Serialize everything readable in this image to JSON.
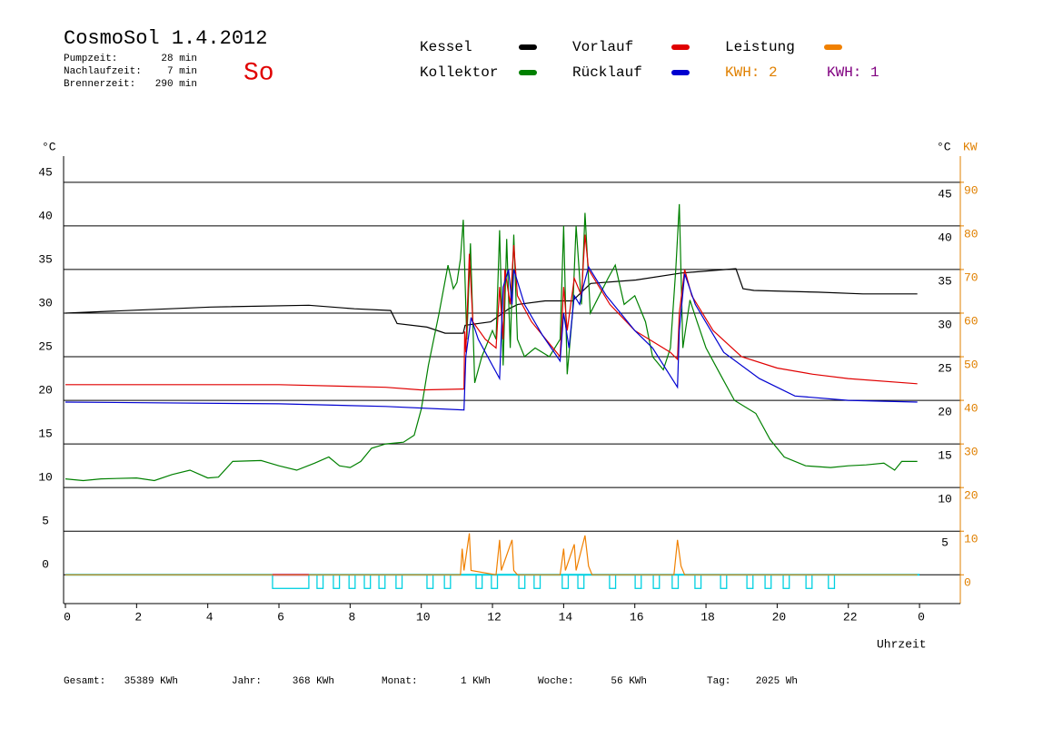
{
  "header": {
    "title": "CosmoSol 1.4.2012",
    "day": "So",
    "stats": [
      [
        "Pumpzeit:",
        "28 min"
      ],
      [
        "Nachlaufzeit:",
        "7 min"
      ],
      [
        "Brennerzeit:",
        "290 min"
      ]
    ]
  },
  "chart_data": {
    "type": "line",
    "x_label": "Uhrzeit",
    "y_label": "°C",
    "y2_label": "KW",
    "xlim": [
      0,
      25.1
    ],
    "xticks": [
      0,
      2,
      4,
      6,
      8,
      10,
      12,
      14,
      16,
      18,
      20,
      22,
      {
        "value": 24,
        "label": "0"
      }
    ],
    "ylim": [
      -3.3,
      48
    ],
    "yticks": [
      0,
      5,
      10,
      15,
      20,
      25,
      30,
      35,
      40,
      45
    ],
    "y2lim": [
      -6.6,
      96
    ],
    "y2ticks": [
      0,
      10,
      20,
      30,
      40,
      50,
      60,
      70,
      80,
      90
    ],
    "y2color": "#e08000",
    "grid": true,
    "series": [
      {
        "name": "Kessel",
        "color": "#000000",
        "x": [
          0,
          4.08,
          6.84,
          8.12,
          9.14,
          9.32,
          10.16,
          10.67,
          11.18,
          11.23,
          11.95,
          12.46,
          12.71,
          13.48,
          14.25,
          14.5,
          14.76,
          16.03,
          17.31,
          18.84,
          19.04,
          19.35,
          21.14,
          22.41,
          23.94
        ],
        "values": [
          30.0,
          30.7,
          30.9,
          30.5,
          30.3,
          28.8,
          28.4,
          27.7,
          27.7,
          28.6,
          29.0,
          30.5,
          31.0,
          31.4,
          31.4,
          32.4,
          33.4,
          33.8,
          34.6,
          35.1,
          32.8,
          32.6,
          32.4,
          32.2,
          32.2
        ]
      },
      {
        "name": "Kollektor",
        "color": "#008000",
        "x": [
          0,
          0.5,
          1,
          2,
          2.5,
          3,
          3.5,
          4,
          4.3,
          4.7,
          5.5,
          6,
          6.5,
          7,
          7.4,
          7.7,
          8,
          8.3,
          8.6,
          9,
          9.5,
          9.8,
          10,
          10.2,
          10.5,
          10.75,
          10.9,
          11,
          11.1,
          11.18,
          11.28,
          11.38,
          11.5,
          11.7,
          12,
          12.1,
          12.2,
          12.3,
          12.4,
          12.5,
          12.6,
          12.7,
          12.9,
          13.2,
          13.6,
          13.9,
          14,
          14.1,
          14.25,
          14.35,
          14.5,
          14.6,
          14.75,
          15,
          15.25,
          15.45,
          15.7,
          16,
          16.3,
          16.5,
          16.8,
          17,
          17.15,
          17.25,
          17.35,
          17.55,
          17.75,
          18,
          18.4,
          18.8,
          19.4,
          19.8,
          20.2,
          20.8,
          21.5,
          22,
          22.5,
          23,
          23.3,
          23.5,
          23.94
        ],
        "values": [
          11,
          10.8,
          11,
          11.1,
          10.8,
          11.5,
          12,
          11.1,
          11.2,
          13,
          13.1,
          12.5,
          12,
          12.8,
          13.5,
          12.5,
          12.3,
          13,
          14.5,
          15,
          15.2,
          16,
          19,
          24,
          30,
          35.5,
          32.8,
          33.5,
          36.2,
          40.7,
          27,
          38,
          22,
          25,
          28,
          27,
          39.5,
          24,
          38.5,
          26,
          39,
          27,
          25,
          26,
          25,
          27,
          40,
          23,
          30,
          40,
          31,
          41.5,
          30,
          32,
          34,
          35.5,
          31,
          32,
          29,
          25,
          23.5,
          26,
          35,
          42.5,
          26,
          31.5,
          29,
          26,
          23,
          20,
          18.5,
          15.5,
          13.5,
          12.5,
          12.3,
          12.5,
          12.6,
          12.8,
          12,
          13,
          13
        ]
      },
      {
        "name": "Vorlauf",
        "color": "#e00000",
        "x": [
          0,
          6,
          9,
          10,
          11.2,
          11.22,
          11.25,
          11.35,
          11.45,
          11.8,
          12.1,
          12.2,
          12.3,
          12.35,
          12.5,
          12.6,
          12.7,
          13.1,
          13.9,
          14,
          14.1,
          14.3,
          14.5,
          14.6,
          14.7,
          15.3,
          16,
          17,
          17.2,
          17.25,
          17.4,
          17.6,
          18.2,
          19,
          20,
          21,
          22,
          23.94
        ],
        "values": [
          21.8,
          21.8,
          21.5,
          21.2,
          21.3,
          27.9,
          25.5,
          36.8,
          29,
          27,
          26,
          33,
          27,
          35,
          31,
          37.8,
          32,
          29,
          25,
          33,
          28,
          34,
          32,
          39,
          35,
          31,
          28,
          25.5,
          24.7,
          30,
          35,
          32,
          28,
          25,
          23.7,
          23,
          22.5,
          21.9
        ]
      },
      {
        "name": "Rücklauf",
        "color": "#0000d0",
        "x": [
          0,
          6,
          9,
          11.2,
          11.25,
          11.4,
          11.6,
          12,
          12.2,
          12.3,
          12.45,
          12.55,
          12.6,
          12.9,
          13.4,
          13.9,
          14,
          14.15,
          14.3,
          14.45,
          14.55,
          14.7,
          15.2,
          16,
          16.5,
          17.2,
          17.25,
          17.4,
          17.7,
          18.5,
          19.5,
          20.5,
          22,
          23.94
        ],
        "values": [
          19.8,
          19.6,
          19.3,
          18.9,
          25,
          29.5,
          27,
          24,
          22.5,
          33,
          35,
          31,
          35,
          31,
          27.5,
          24.5,
          30,
          26,
          32,
          31,
          33,
          35.3,
          32,
          28,
          26,
          21.5,
          28,
          34.5,
          31,
          25.5,
          22.5,
          20.5,
          20,
          19.8
        ]
      },
      {
        "name": "Leistung",
        "color": "#f08000",
        "axis": "y2",
        "x": [
          0,
          11.1,
          11.15,
          11.2,
          11.35,
          11.4,
          12.1,
          12.2,
          12.25,
          12.55,
          12.6,
          12.7,
          13.9,
          14,
          14.05,
          14.3,
          14.35,
          14.6,
          14.7,
          14.8,
          17.1,
          17.2,
          17.3,
          17.4,
          23.94
        ],
        "values": [
          0,
          0,
          6,
          1,
          9.5,
          1,
          0,
          8,
          1,
          8,
          1,
          0,
          0,
          6,
          1,
          7,
          1,
          9,
          2,
          0,
          0,
          8,
          2,
          0,
          0
        ]
      }
    ],
    "kwh_labels": [
      {
        "text": "KWH: 2",
        "color": "#e08000"
      },
      {
        "text": "KWH: 1",
        "color": "#800080"
      }
    ],
    "pump_intervals": [
      [
        5.82,
        6.84
      ],
      [
        7.07,
        7.24
      ],
      [
        7.53,
        7.7
      ],
      [
        7.97,
        8.14
      ],
      [
        8.4,
        8.57
      ],
      [
        8.81,
        8.98
      ],
      [
        9.29,
        9.46
      ],
      [
        10.16,
        10.33
      ],
      [
        10.65,
        10.82
      ],
      [
        11.54,
        11.71
      ],
      [
        11.97,
        12.14
      ],
      [
        12.74,
        12.91
      ],
      [
        13.17,
        13.34
      ],
      [
        13.96,
        14.13
      ],
      [
        14.4,
        14.57
      ],
      [
        15.29,
        15.46
      ],
      [
        16.01,
        16.18
      ],
      [
        16.52,
        16.69
      ],
      [
        17.05,
        17.22
      ],
      [
        17.69,
        17.86
      ],
      [
        18.41,
        18.58
      ],
      [
        19.15,
        19.32
      ],
      [
        19.66,
        19.83
      ],
      [
        20.17,
        20.34
      ],
      [
        20.81,
        20.98
      ],
      [
        21.44,
        21.61
      ]
    ],
    "pump_color": "#00d0e0",
    "burner_intervals": [
      [
        5.82,
        6.84
      ]
    ],
    "burner_color": "#d000a0"
  },
  "footer": [
    [
      "Gesamt:",
      "35389 KWh"
    ],
    [
      "Jahr:",
      "368 KWh"
    ],
    [
      "Monat:",
      "1 KWh"
    ],
    [
      "Woche:",
      "56 KWh"
    ],
    [
      "Tag:",
      "2025 Wh"
    ]
  ]
}
